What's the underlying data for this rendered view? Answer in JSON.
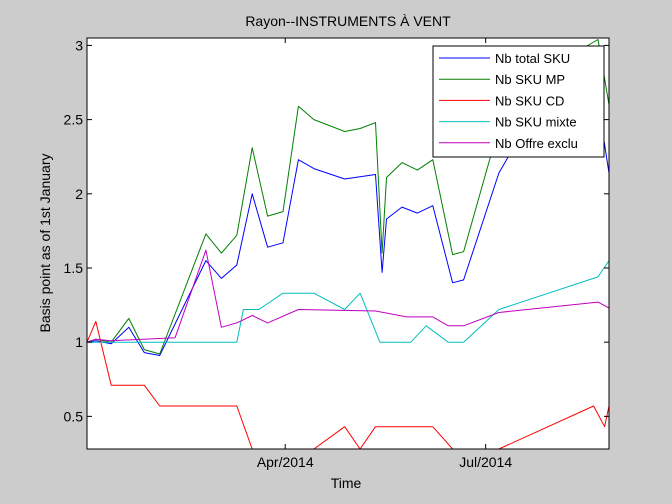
{
  "chart_data": {
    "type": "line",
    "title": "Rayon--INSTRUMENTS À VENT",
    "xlabel": "Time",
    "ylabel": "Basis point as of 1st January",
    "xlim": [
      "2014-01-01",
      "2014-08-26"
    ],
    "ylim": [
      0.28,
      3.05
    ],
    "x_ticks": [
      {
        "date": "2014-04-01",
        "label": "Apr/2014"
      },
      {
        "date": "2014-07-01",
        "label": "Jul/2014"
      }
    ],
    "y_ticks": [
      {
        "value": 0.5,
        "label": "0.5"
      },
      {
        "value": 1,
        "label": "1"
      },
      {
        "value": 1.5,
        "label": "1.5"
      },
      {
        "value": 2,
        "label": "2"
      },
      {
        "value": 2.5,
        "label": "2.5"
      },
      {
        "value": 3,
        "label": "3"
      }
    ],
    "grid": false,
    "legend_position": "top-right",
    "series": [
      {
        "name": "Nb total SKU",
        "color": "#0000ff",
        "points": [
          [
            "2014-01-01",
            1.0
          ],
          [
            "2014-01-05",
            1.01
          ],
          [
            "2014-01-12",
            0.99
          ],
          [
            "2014-01-20",
            1.1
          ],
          [
            "2014-01-27",
            0.93
          ],
          [
            "2014-02-03",
            0.91
          ],
          [
            "2014-02-24",
            1.55
          ],
          [
            "2014-03-03",
            1.43
          ],
          [
            "2014-03-10",
            1.52
          ],
          [
            "2014-03-17",
            2.0
          ],
          [
            "2014-03-24",
            1.64
          ],
          [
            "2014-03-31",
            1.67
          ],
          [
            "2014-04-07",
            2.23
          ],
          [
            "2014-04-14",
            2.17
          ],
          [
            "2014-04-28",
            2.1
          ],
          [
            "2014-05-12",
            2.13
          ],
          [
            "2014-05-15",
            1.47
          ],
          [
            "2014-05-17",
            1.83
          ],
          [
            "2014-05-24",
            1.91
          ],
          [
            "2014-05-31",
            1.87
          ],
          [
            "2014-06-07",
            1.92
          ],
          [
            "2014-06-16",
            1.4
          ],
          [
            "2014-06-21",
            1.42
          ],
          [
            "2014-07-07",
            2.14
          ],
          [
            "2014-07-14",
            2.32
          ],
          [
            "2014-08-21",
            2.62
          ],
          [
            "2014-08-26",
            2.14
          ]
        ]
      },
      {
        "name": "Nb SKU MP",
        "color": "#008000",
        "points": [
          [
            "2014-01-01",
            1.0
          ],
          [
            "2014-01-05",
            1.02
          ],
          [
            "2014-01-12",
            1.0
          ],
          [
            "2014-01-20",
            1.16
          ],
          [
            "2014-01-27",
            0.95
          ],
          [
            "2014-02-03",
            0.92
          ],
          [
            "2014-02-24",
            1.73
          ],
          [
            "2014-03-03",
            1.6
          ],
          [
            "2014-03-10",
            1.72
          ],
          [
            "2014-03-17",
            2.31
          ],
          [
            "2014-03-24",
            1.85
          ],
          [
            "2014-03-31",
            1.88
          ],
          [
            "2014-04-07",
            2.59
          ],
          [
            "2014-04-14",
            2.5
          ],
          [
            "2014-04-28",
            2.42
          ],
          [
            "2014-05-05",
            2.44
          ],
          [
            "2014-05-12",
            2.48
          ],
          [
            "2014-05-15",
            1.6
          ],
          [
            "2014-05-17",
            2.11
          ],
          [
            "2014-05-24",
            2.21
          ],
          [
            "2014-05-31",
            2.16
          ],
          [
            "2014-06-07",
            2.23
          ],
          [
            "2014-06-16",
            1.59
          ],
          [
            "2014-06-21",
            1.61
          ],
          [
            "2014-07-07",
            2.45
          ],
          [
            "2014-07-14",
            2.71
          ],
          [
            "2014-08-21",
            3.04
          ],
          [
            "2014-08-26",
            2.6
          ]
        ]
      },
      {
        "name": "Nb SKU CD",
        "color": "#ff0000",
        "points": [
          [
            "2014-01-01",
            1.0
          ],
          [
            "2014-01-05",
            1.14
          ],
          [
            "2014-01-12",
            0.71
          ],
          [
            "2014-01-27",
            0.71
          ],
          [
            "2014-02-03",
            0.57
          ],
          [
            "2014-03-10",
            0.57
          ],
          [
            "2014-03-17",
            0.28
          ],
          [
            "2014-04-14",
            0.28
          ],
          [
            "2014-04-28",
            0.43
          ],
          [
            "2014-05-05",
            0.28
          ],
          [
            "2014-05-12",
            0.43
          ],
          [
            "2014-06-07",
            0.43
          ],
          [
            "2014-06-16",
            0.28
          ],
          [
            "2014-07-07",
            0.28
          ],
          [
            "2014-08-19",
            0.57
          ],
          [
            "2014-08-24",
            0.43
          ],
          [
            "2014-08-26",
            0.57
          ]
        ]
      },
      {
        "name": "Nb SKU mixte",
        "color": "#00bfbf",
        "points": [
          [
            "2014-01-01",
            1.0
          ],
          [
            "2014-01-27",
            1.0
          ],
          [
            "2014-03-10",
            1.0
          ],
          [
            "2014-03-13",
            1.22
          ],
          [
            "2014-03-20",
            1.22
          ],
          [
            "2014-03-31",
            1.33
          ],
          [
            "2014-04-14",
            1.33
          ],
          [
            "2014-04-28",
            1.22
          ],
          [
            "2014-05-05",
            1.33
          ],
          [
            "2014-05-14",
            1.0
          ],
          [
            "2014-05-28",
            1.0
          ],
          [
            "2014-06-04",
            1.11
          ],
          [
            "2014-06-14",
            1.0
          ],
          [
            "2014-06-21",
            1.0
          ],
          [
            "2014-07-07",
            1.22
          ],
          [
            "2014-08-21",
            1.44
          ],
          [
            "2014-08-26",
            1.55
          ],
          [
            "2014-08-26",
            1.44
          ]
        ]
      },
      {
        "name": "Nb Offre exclu",
        "color": "#bf00bf",
        "points": [
          [
            "2014-01-01",
            1.0
          ],
          [
            "2014-01-05",
            1.02
          ],
          [
            "2014-01-12",
            1.01
          ],
          [
            "2014-02-10",
            1.03
          ],
          [
            "2014-02-24",
            1.62
          ],
          [
            "2014-03-03",
            1.1
          ],
          [
            "2014-03-10",
            1.13
          ],
          [
            "2014-03-17",
            1.18
          ],
          [
            "2014-03-24",
            1.13
          ],
          [
            "2014-04-07",
            1.22
          ],
          [
            "2014-05-12",
            1.21
          ],
          [
            "2014-05-26",
            1.17
          ],
          [
            "2014-06-07",
            1.17
          ],
          [
            "2014-06-14",
            1.11
          ],
          [
            "2014-06-21",
            1.11
          ],
          [
            "2014-07-07",
            1.2
          ],
          [
            "2014-08-21",
            1.27
          ],
          [
            "2014-08-26",
            1.23
          ]
        ]
      }
    ]
  }
}
